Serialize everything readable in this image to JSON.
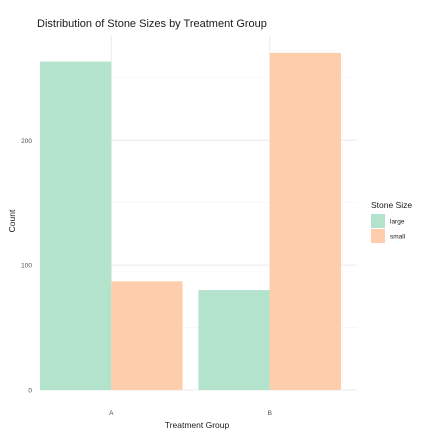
{
  "chart_data": {
    "type": "bar",
    "title": "Distribution of Stone Sizes by Treatment Group",
    "xlabel": "Treatment Group",
    "ylabel": "Count",
    "categories": [
      "A",
      "B"
    ],
    "series": [
      {
        "name": "large",
        "values": [
          263,
          80
        ]
      },
      {
        "name": "small",
        "values": [
          87,
          270
        ]
      }
    ],
    "ylim": [
      0,
      270
    ],
    "yticks": [
      0,
      100,
      200
    ],
    "grid": true,
    "legend": {
      "title": "Stone Size",
      "placement": "right"
    },
    "colors": {
      "large": "#b3e2cd",
      "small": "#fdcdac"
    }
  }
}
